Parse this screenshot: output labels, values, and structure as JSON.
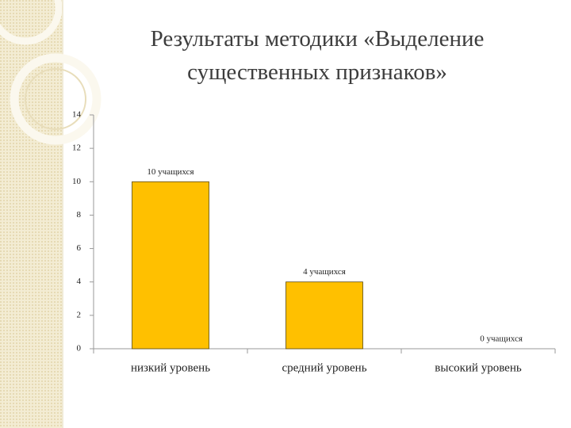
{
  "chart_data": {
    "type": "bar",
    "title": "Результаты методики «Выделение существенных признаков»",
    "categories": [
      "низкий уровень",
      "средний уровень",
      "высокий уровень"
    ],
    "values": [
      10,
      4,
      0
    ],
    "value_labels": [
      "10 учащихся",
      "4 учащихся",
      "0 учащихся"
    ],
    "color": "#FFC000",
    "ylim": [
      0,
      14
    ],
    "yticks": [
      0,
      2,
      4,
      6,
      8,
      10,
      12,
      14
    ],
    "grid": false
  }
}
